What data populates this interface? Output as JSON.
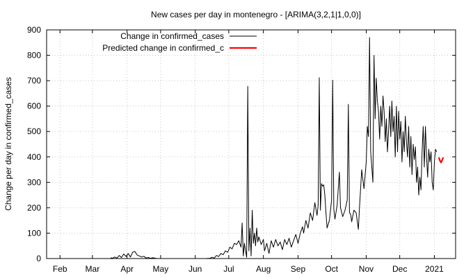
{
  "chart_data": {
    "type": "line",
    "title": "New cases per day in montenegro -  [ARIMA(3,2,1|1,0,0)]",
    "ylabel": "Change per day in confirmed_cases",
    "xlabel": "",
    "ylim": [
      0,
      900
    ],
    "yticks": [
      0,
      100,
      200,
      300,
      400,
      500,
      600,
      700,
      800,
      900
    ],
    "xlim": [
      "2020-01-20",
      "2021-01-20"
    ],
    "xticks": [
      {
        "label": "Feb",
        "date": "2020-02-01"
      },
      {
        "label": "Mar",
        "date": "2020-03-01"
      },
      {
        "label": "Apr",
        "date": "2020-04-01"
      },
      {
        "label": "May",
        "date": "2020-05-01"
      },
      {
        "label": "Jun",
        "date": "2020-06-01"
      },
      {
        "label": "Jul",
        "date": "2020-07-01"
      },
      {
        "label": "Aug",
        "date": "2020-08-01"
      },
      {
        "label": "Sep",
        "date": "2020-09-01"
      },
      {
        "label": "Oct",
        "date": "2020-10-01"
      },
      {
        "label": "Nov",
        "date": "2020-11-01"
      },
      {
        "label": "Dec",
        "date": "2020-12-01"
      },
      {
        "label": "2021",
        "date": "2021-01-01"
      }
    ],
    "grid": true,
    "legend_position": "top-left",
    "series": [
      {
        "name": "Change in confirmed_cases",
        "color": "#000000",
        "points": [
          [
            "2020-03-17",
            0
          ],
          [
            "2020-03-18",
            3
          ],
          [
            "2020-03-19",
            1
          ],
          [
            "2020-03-21",
            6
          ],
          [
            "2020-03-23",
            2
          ],
          [
            "2020-03-25",
            12
          ],
          [
            "2020-03-27",
            4
          ],
          [
            "2020-03-29",
            18
          ],
          [
            "2020-03-31",
            8
          ],
          [
            "2020-04-02",
            20
          ],
          [
            "2020-04-04",
            6
          ],
          [
            "2020-04-06",
            25
          ],
          [
            "2020-04-08",
            28
          ],
          [
            "2020-04-10",
            14
          ],
          [
            "2020-04-12",
            10
          ],
          [
            "2020-04-14",
            6
          ],
          [
            "2020-04-16",
            9
          ],
          [
            "2020-04-18",
            2
          ],
          [
            "2020-04-20",
            4
          ],
          [
            "2020-04-22",
            1
          ],
          [
            "2020-04-24",
            3
          ],
          [
            "2020-04-28",
            0
          ],
          [
            "2020-05-05",
            0
          ],
          [
            "2020-06-10",
            0
          ],
          [
            "2020-06-14",
            1
          ],
          [
            "2020-06-16",
            5
          ],
          [
            "2020-06-18",
            2
          ],
          [
            "2020-06-20",
            12
          ],
          [
            "2020-06-22",
            8
          ],
          [
            "2020-06-24",
            20
          ],
          [
            "2020-06-26",
            15
          ],
          [
            "2020-06-28",
            30
          ],
          [
            "2020-06-30",
            25
          ],
          [
            "2020-07-02",
            45
          ],
          [
            "2020-07-04",
            38
          ],
          [
            "2020-07-06",
            60
          ],
          [
            "2020-07-08",
            55
          ],
          [
            "2020-07-10",
            70
          ],
          [
            "2020-07-12",
            45
          ],
          [
            "2020-07-13",
            140
          ],
          [
            "2020-07-14",
            10
          ],
          [
            "2020-07-15",
            60
          ],
          [
            "2020-07-16",
            30
          ],
          [
            "2020-07-17",
            5
          ],
          [
            "2020-07-18",
            678
          ],
          [
            "2020-07-19",
            30
          ],
          [
            "2020-07-20",
            120
          ],
          [
            "2020-07-21",
            10
          ],
          [
            "2020-07-22",
            190
          ],
          [
            "2020-07-23",
            60
          ],
          [
            "2020-07-24",
            100
          ],
          [
            "2020-07-25",
            50
          ],
          [
            "2020-07-26",
            120
          ],
          [
            "2020-07-27",
            65
          ],
          [
            "2020-07-28",
            85
          ],
          [
            "2020-07-30",
            55
          ],
          [
            "2020-08-01",
            75
          ],
          [
            "2020-08-02",
            30
          ],
          [
            "2020-08-04",
            60
          ],
          [
            "2020-08-06",
            20
          ],
          [
            "2020-08-08",
            70
          ],
          [
            "2020-08-10",
            45
          ],
          [
            "2020-08-12",
            75
          ],
          [
            "2020-08-14",
            50
          ],
          [
            "2020-08-16",
            65
          ],
          [
            "2020-08-18",
            35
          ],
          [
            "2020-08-20",
            75
          ],
          [
            "2020-08-22",
            55
          ],
          [
            "2020-08-24",
            80
          ],
          [
            "2020-08-26",
            45
          ],
          [
            "2020-08-28",
            70
          ],
          [
            "2020-08-30",
            95
          ],
          [
            "2020-09-01",
            60
          ],
          [
            "2020-09-03",
            100
          ],
          [
            "2020-09-05",
            125
          ],
          [
            "2020-09-06",
            100
          ],
          [
            "2020-09-08",
            150
          ],
          [
            "2020-09-10",
            120
          ],
          [
            "2020-09-12",
            180
          ],
          [
            "2020-09-14",
            150
          ],
          [
            "2020-09-16",
            220
          ],
          [
            "2020-09-18",
            170
          ],
          [
            "2020-09-19",
            210
          ],
          [
            "2020-09-20",
            712
          ],
          [
            "2020-09-21",
            190
          ],
          [
            "2020-09-22",
            295
          ],
          [
            "2020-09-23",
            285
          ],
          [
            "2020-09-24",
            290
          ],
          [
            "2020-09-25",
            250
          ],
          [
            "2020-09-26",
            180
          ],
          [
            "2020-09-27",
            120
          ],
          [
            "2020-09-29",
            150
          ],
          [
            "2020-10-01",
            230
          ],
          [
            "2020-10-02",
            702
          ],
          [
            "2020-10-03",
            195
          ],
          [
            "2020-10-04",
            155
          ],
          [
            "2020-10-06",
            210
          ],
          [
            "2020-10-08",
            340
          ],
          [
            "2020-10-09",
            200
          ],
          [
            "2020-10-11",
            165
          ],
          [
            "2020-10-13",
            190
          ],
          [
            "2020-10-15",
            230
          ],
          [
            "2020-10-16",
            607
          ],
          [
            "2020-10-17",
            180
          ],
          [
            "2020-10-18",
            175
          ],
          [
            "2020-10-19",
            145
          ],
          [
            "2020-10-21",
            190
          ],
          [
            "2020-10-23",
            180
          ],
          [
            "2020-10-25",
            115
          ],
          [
            "2020-10-26",
            200
          ],
          [
            "2020-10-28",
            350
          ],
          [
            "2020-10-29",
            310
          ],
          [
            "2020-10-30",
            275
          ],
          [
            "2020-11-01",
            380
          ],
          [
            "2020-11-02",
            520
          ],
          [
            "2020-11-03",
            480
          ],
          [
            "2020-11-04",
            870
          ],
          [
            "2020-11-05",
            420
          ],
          [
            "2020-11-07",
            300
          ],
          [
            "2020-11-08",
            800
          ],
          [
            "2020-11-09",
            550
          ],
          [
            "2020-11-10",
            710
          ],
          [
            "2020-11-11",
            620
          ],
          [
            "2020-11-12",
            580
          ],
          [
            "2020-11-13",
            470
          ],
          [
            "2020-11-14",
            600
          ],
          [
            "2020-11-15",
            520
          ],
          [
            "2020-11-16",
            640
          ],
          [
            "2020-11-17",
            580
          ],
          [
            "2020-11-18",
            460
          ],
          [
            "2020-11-19",
            550
          ],
          [
            "2020-11-20",
            420
          ],
          [
            "2020-11-21",
            500
          ],
          [
            "2020-11-22",
            600
          ],
          [
            "2020-11-23",
            480
          ],
          [
            "2020-11-24",
            620
          ],
          [
            "2020-11-25",
            500
          ],
          [
            "2020-11-26",
            560
          ],
          [
            "2020-11-27",
            400
          ],
          [
            "2020-11-28",
            600
          ],
          [
            "2020-11-29",
            420
          ],
          [
            "2020-11-30",
            580
          ],
          [
            "2020-12-01",
            470
          ],
          [
            "2020-12-02",
            540
          ],
          [
            "2020-12-03",
            380
          ],
          [
            "2020-12-04",
            500
          ],
          [
            "2020-12-05",
            420
          ],
          [
            "2020-12-06",
            560
          ],
          [
            "2020-12-07",
            460
          ],
          [
            "2020-12-08",
            400
          ],
          [
            "2020-12-09",
            520
          ],
          [
            "2020-12-10",
            360
          ],
          [
            "2020-12-11",
            480
          ],
          [
            "2020-12-12",
            330
          ],
          [
            "2020-12-13",
            450
          ],
          [
            "2020-12-14",
            390
          ],
          [
            "2020-12-15",
            440
          ],
          [
            "2020-12-16",
            300
          ],
          [
            "2020-12-17",
            360
          ],
          [
            "2020-12-18",
            250
          ],
          [
            "2020-12-19",
            320
          ],
          [
            "2020-12-20",
            270
          ],
          [
            "2020-12-21",
            420
          ],
          [
            "2020-12-22",
            520
          ],
          [
            "2020-12-23",
            360
          ],
          [
            "2020-12-24",
            520
          ],
          [
            "2020-12-25",
            400
          ],
          [
            "2020-12-26",
            320
          ],
          [
            "2020-12-27",
            430
          ],
          [
            "2020-12-28",
            380
          ],
          [
            "2020-12-29",
            420
          ],
          [
            "2020-12-30",
            300
          ],
          [
            "2020-12-31",
            270
          ],
          [
            "2021-01-01",
            380
          ],
          [
            "2021-01-02",
            430
          ],
          [
            "2021-01-03",
            420
          ]
        ]
      },
      {
        "name": "Predicted change in confirmed_c",
        "color": "#ff0000",
        "points": [
          [
            "2021-01-05",
            398
          ],
          [
            "2021-01-06",
            385
          ],
          [
            "2021-01-07",
            378
          ],
          [
            "2021-01-08",
            388
          ],
          [
            "2021-01-09",
            398
          ]
        ]
      }
    ]
  }
}
